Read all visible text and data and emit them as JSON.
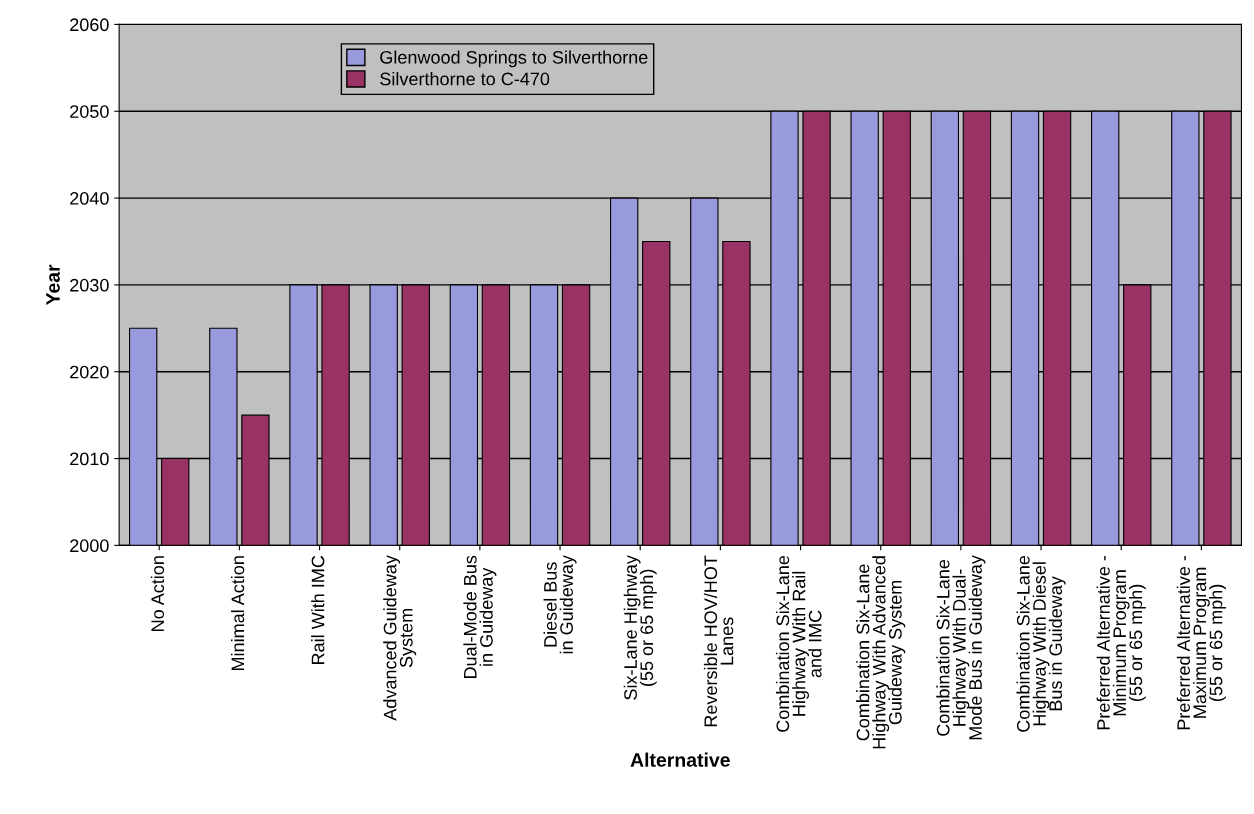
{
  "chart_data": {
    "type": "bar",
    "xlabel": "Alternative",
    "ylabel": "Year",
    "categories": [
      "No Action",
      "Minimal Action",
      "Rail With IMC",
      "Advanced Guideway\nSystem",
      "Dual-Mode Bus\nin Guideway",
      "Diesel Bus\nin Guideway",
      "Six-Lane Highway\n(55 or 65 mph)",
      "Reversible HOV/HOT\nLanes",
      "Combination Six-Lane\nHighway With Rail\nand IMC",
      "Combination Six-Lane\nHighway With Advanced\nGuideway System",
      "Combination Six-Lane\nHighway With Dual-\nMode Bus in Guideway",
      "Combination Six-Lane\nHighway With Diesel\nBus in Guideway",
      "Preferred Alternative -\nMinimum Program\n(55 or 65 mph)",
      "Preferred Alternative -\nMaximum Program\n(55 or 65 mph)"
    ],
    "series": [
      {
        "name": "Glenwood Springs to Silverthorne",
        "color": "#9999dd",
        "values": [
          2025,
          2025,
          2030,
          2030,
          2030,
          2030,
          2040,
          2040,
          2050,
          2050,
          2050,
          2050,
          2050,
          2050
        ]
      },
      {
        "name": "Silverthorne to C-470",
        "color": "#993366",
        "values": [
          2010,
          2015,
          2030,
          2030,
          2030,
          2030,
          2035,
          2035,
          2050,
          2050,
          2050,
          2050,
          2030,
          2050
        ]
      }
    ],
    "ylim": [
      2000,
      2060
    ],
    "yticks": [
      2000,
      2010,
      2020,
      2030,
      2040,
      2050,
      2060
    ],
    "grid": "y",
    "legend": "top left"
  }
}
